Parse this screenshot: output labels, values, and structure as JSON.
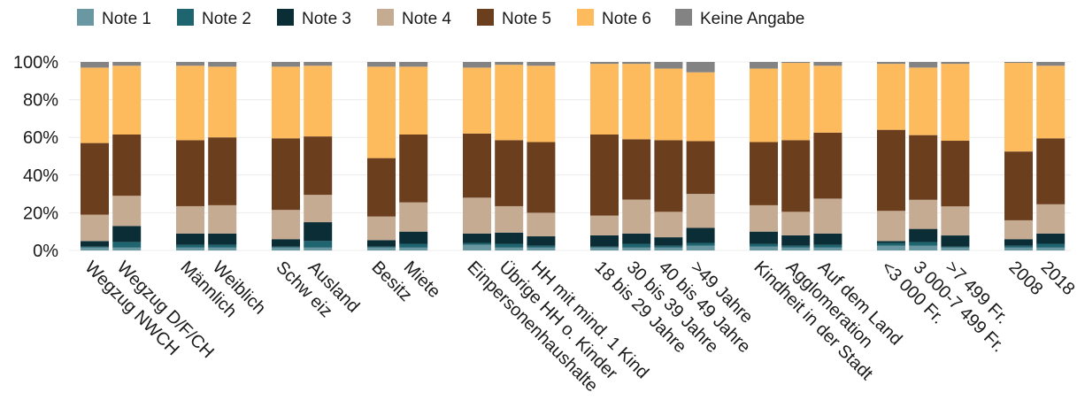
{
  "chart_data": {
    "type": "bar",
    "stacked": true,
    "legend_position": "top-left",
    "grid": true,
    "ylim": [
      0,
      100
    ],
    "y_ticks": [
      "0%",
      "20%",
      "40%",
      "60%",
      "80%",
      "100%"
    ],
    "categories": [
      "Wegzug NWCH",
      "Wegzug D/F/CH",
      "Männlich",
      "Weiblich",
      "Schw eiz",
      "Ausland",
      "Besitz",
      "Miete",
      "Einpersonenhaushalte",
      "Übrige HH o. Kinder",
      "HH mit mind. 1 Kind",
      "18 bis 29 Jahre",
      "30 bis 39 Jahre",
      "40 bis 49 Jahre",
      ">49 Jahre",
      "Kindheit in der Stadt",
      "Agglomeration",
      "Auf dem Land",
      "<3 000 Fr.",
      "3 000-7 499 Fr.",
      ">7 499 Fr.",
      "2008",
      "2018"
    ],
    "groups": [
      2,
      2,
      2,
      2,
      3,
      4,
      3,
      3,
      2
    ],
    "series": [
      {
        "name": "Note 1",
        "color": "#6a98a2",
        "values": [
          1.5,
          1.5,
          1.5,
          1.5,
          1.5,
          1.5,
          1.5,
          1.5,
          3,
          1.5,
          1.5,
          1.5,
          1.5,
          1.5,
          2.5,
          2,
          1.5,
          1.5,
          2.5,
          2.5,
          1.5,
          1.5,
          1.5
        ]
      },
      {
        "name": "Note 2",
        "color": "#1f6570",
        "values": [
          0.5,
          3,
          1.5,
          1.5,
          0.5,
          3.5,
          0.5,
          2,
          1,
          2,
          1,
          0.5,
          2,
          1,
          1.5,
          1.5,
          1,
          1.5,
          1.5,
          2,
          0.5,
          1,
          2
        ]
      },
      {
        "name": "Note 3",
        "color": "#0b2e36",
        "values": [
          3,
          8.5,
          6,
          6,
          4,
          10,
          3.5,
          6.5,
          5,
          6,
          5,
          6,
          5.5,
          4.5,
          8,
          6.5,
          5.5,
          6,
          1,
          7,
          6,
          3.5,
          5.5
        ]
      },
      {
        "name": "Note 4",
        "color": "#c6ab93",
        "values": [
          14,
          16,
          14.5,
          15,
          15.5,
          14.5,
          12.5,
          15.5,
          19,
          14,
          12.5,
          10.5,
          18,
          13.5,
          18,
          14,
          12.5,
          18.5,
          16,
          15.5,
          15.5,
          10,
          15.5
        ]
      },
      {
        "name": "Note 5",
        "color": "#6b3f1e",
        "values": [
          38,
          32.5,
          35,
          36,
          38,
          31,
          31,
          36,
          34,
          35,
          37.5,
          43,
          32,
          38,
          28,
          33.5,
          38,
          35,
          43,
          34.5,
          35,
          36.5,
          35
        ]
      },
      {
        "name": "Note 6",
        "color": "#fdbb5e",
        "values": [
          40,
          36.5,
          39.5,
          37.5,
          38,
          37.5,
          48.5,
          36,
          35,
          40,
          40.5,
          37.5,
          40,
          38,
          36.5,
          39,
          41,
          35.5,
          35,
          36,
          41,
          47,
          38.5
        ]
      },
      {
        "name": "Keine Angabe",
        "color": "#838383",
        "values": [
          3,
          2,
          2,
          2.5,
          2.5,
          2,
          2.5,
          2.5,
          3,
          1.5,
          2,
          1,
          1,
          3.5,
          5.5,
          3.5,
          0.5,
          2,
          1,
          3,
          1,
          0.5,
          2
        ]
      }
    ]
  }
}
